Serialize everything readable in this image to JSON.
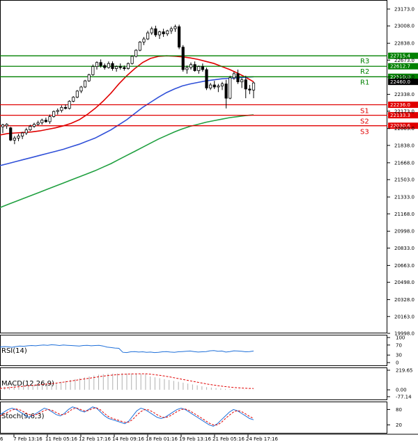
{
  "chart_data": {
    "type": "candlestick",
    "price_axis": {
      "ticks": [
        "23173.0",
        "23008.0",
        "22838.0",
        "22673.0",
        "22508.0",
        "22338.0",
        "22173.0",
        "22003.0",
        "21838.0",
        "21668.0",
        "21503.0",
        "21333.0",
        "21168.0",
        "20998.0",
        "20833.0",
        "20663.0",
        "20498.0",
        "20328.0",
        "20163.0",
        "19998.0"
      ],
      "range": [
        19998,
        23173
      ]
    },
    "time_axis": {
      "ticks": [
        "7 Feb 13:16",
        "11 Feb 05:16",
        "12 Feb 17:16",
        "14 Feb 09:16",
        "18 Feb 01:16",
        "19 Feb 13:16",
        "21 Feb 05:16",
        "24 Feb 17:16"
      ],
      "leading_tick_fragment": "6"
    },
    "levels": [
      {
        "name": "R3",
        "value": 22715.4,
        "label": "22715.4",
        "color": "#008000"
      },
      {
        "name": "R2",
        "value": 22612.7,
        "label": "22612.7",
        "color": "#008000"
      },
      {
        "name": "R1",
        "value": 22510.0,
        "label": "22510.0",
        "color": "#008000"
      },
      {
        "name": "S1",
        "value": 22236.0,
        "label": "22236.0",
        "color": "#e00000"
      },
      {
        "name": "S2",
        "value": 22133.3,
        "label": "22133.3",
        "color": "#e00000"
      },
      {
        "name": "S3",
        "value": 22030.6,
        "label": "22030.6",
        "color": "#e00000"
      }
    ],
    "current_price": {
      "value": 22460.0,
      "label": "22460.0"
    },
    "candles": [
      [
        22020,
        22050,
        21960,
        22040
      ],
      [
        22030,
        22055,
        22000,
        22045
      ],
      [
        22010,
        22020,
        21880,
        21890
      ],
      [
        21890,
        21930,
        21850,
        21910
      ],
      [
        21910,
        21950,
        21880,
        21930
      ],
      [
        21930,
        21970,
        21900,
        21960
      ],
      [
        21960,
        22010,
        21940,
        21990
      ],
      [
        21990,
        22040,
        21980,
        22025
      ],
      [
        22025,
        22060,
        22010,
        22045
      ],
      [
        22045,
        22080,
        22030,
        22060
      ],
      [
        22060,
        22100,
        22040,
        22085
      ],
      [
        22085,
        22110,
        22060,
        22070
      ],
      [
        22070,
        22140,
        22050,
        22120
      ],
      [
        22120,
        22180,
        22110,
        22170
      ],
      [
        22170,
        22200,
        22140,
        22180
      ],
      [
        22180,
        22230,
        22160,
        22210
      ],
      [
        22210,
        22240,
        22190,
        22200
      ],
      [
        22200,
        22280,
        22190,
        22270
      ],
      [
        22270,
        22320,
        22260,
        22310
      ],
      [
        22310,
        22380,
        22300,
        22370
      ],
      [
        22370,
        22420,
        22350,
        22410
      ],
      [
        22410,
        22480,
        22400,
        22470
      ],
      [
        22470,
        22540,
        22460,
        22530
      ],
      [
        22530,
        22630,
        22520,
        22610
      ],
      [
        22610,
        22660,
        22580,
        22650
      ],
      [
        22650,
        22680,
        22600,
        22620
      ],
      [
        22620,
        22640,
        22580,
        22600
      ],
      [
        22600,
        22660,
        22590,
        22640
      ],
      [
        22640,
        22660,
        22570,
        22590
      ],
      [
        22590,
        22620,
        22560,
        22610
      ],
      [
        22610,
        22640,
        22580,
        22600
      ],
      [
        22600,
        22620,
        22570,
        22590
      ],
      [
        22590,
        22650,
        22580,
        22640
      ],
      [
        22640,
        22720,
        22630,
        22710
      ],
      [
        22710,
        22780,
        22700,
        22770
      ],
      [
        22770,
        22860,
        22760,
        22850
      ],
      [
        22850,
        22900,
        22820,
        22880
      ],
      [
        22880,
        22960,
        22870,
        22940
      ],
      [
        22940,
        23000,
        22920,
        22980
      ],
      [
        22980,
        23010,
        22900,
        22920
      ],
      [
        22920,
        22960,
        22880,
        22950
      ],
      [
        22950,
        22980,
        22900,
        22930
      ],
      [
        22930,
        22970,
        22910,
        22960
      ],
      [
        22960,
        23000,
        22930,
        22980
      ],
      [
        22980,
        23020,
        22950,
        23000
      ],
      [
        23000,
        23020,
        22780,
        22800
      ],
      [
        22800,
        22820,
        22560,
        22580
      ],
      [
        22580,
        22620,
        22540,
        22600
      ],
      [
        22600,
        22650,
        22580,
        22630
      ],
      [
        22630,
        22660,
        22560,
        22570
      ],
      [
        22570,
        22620,
        22540,
        22610
      ],
      [
        22610,
        22640,
        22560,
        22580
      ],
      [
        22580,
        22600,
        22380,
        22400
      ],
      [
        22400,
        22450,
        22380,
        22430
      ],
      [
        22430,
        22470,
        22390,
        22410
      ],
      [
        22410,
        22440,
        22360,
        22420
      ],
      [
        22420,
        22460,
        22380,
        22440
      ],
      [
        22440,
        22480,
        22200,
        22300
      ],
      [
        22300,
        22520,
        22290,
        22500
      ],
      [
        22500,
        22560,
        22480,
        22540
      ],
      [
        22540,
        22580,
        22440,
        22460
      ],
      [
        22460,
        22500,
        22400,
        22480
      ],
      [
        22480,
        22520,
        22300,
        22390
      ],
      [
        22390,
        22430,
        22340,
        22380
      ],
      [
        22380,
        22460,
        22300,
        22450
      ]
    ],
    "ma_series": [
      {
        "color": "#e00000",
        "values": [
          21940,
          21955,
          21960,
          21965,
          21970,
          21980,
          21995,
          22010,
          22030,
          22055,
          22090,
          22140,
          22200,
          22270,
          22350,
          22440,
          22520,
          22590,
          22650,
          22690,
          22710,
          22715,
          22712,
          22705,
          22695,
          22680,
          22660,
          22640,
          22610,
          22580,
          22545,
          22505,
          22460
        ]
      },
      {
        "color": "#3050d8",
        "values": [
          21640,
          21660,
          21680,
          21700,
          21720,
          21740,
          21760,
          21780,
          21800,
          21825,
          21850,
          21880,
          21910,
          21950,
          21990,
          22040,
          22090,
          22150,
          22210,
          22260,
          22310,
          22355,
          22390,
          22420,
          22440,
          22455,
          22470,
          22480,
          22490,
          22495,
          22500,
          22505,
          22510
        ]
      },
      {
        "color": "#20a040",
        "values": [
          21230,
          21260,
          21290,
          21320,
          21350,
          21380,
          21410,
          21440,
          21470,
          21500,
          21530,
          21560,
          21590,
          21625,
          21660,
          21700,
          21740,
          21780,
          21820,
          21860,
          21900,
          21935,
          21970,
          22000,
          22025,
          22045,
          22065,
          22080,
          22095,
          22110,
          22120,
          22130,
          22137
        ]
      }
    ],
    "indicators": [
      {
        "name": "RSI(14)",
        "label": "RSI(14)",
        "ticks": [
          "100",
          "70",
          "30",
          "0"
        ],
        "range": [
          0,
          100
        ],
        "color": "#1e6fd9",
        "values": [
          62,
          64,
          63,
          61,
          64,
          66,
          65,
          67,
          68,
          67,
          69,
          70,
          69,
          71,
          70,
          68,
          70,
          69,
          68,
          67,
          66,
          68,
          69,
          67,
          68,
          69,
          66,
          62,
          60,
          58,
          57,
          41,
          40,
          43,
          44,
          42,
          43,
          41,
          42,
          40,
          41,
          43,
          44,
          42,
          41,
          43,
          44,
          45,
          46,
          44,
          42,
          43,
          44,
          47,
          48,
          45,
          46,
          42,
          44,
          47,
          46,
          45,
          43,
          44,
          46
        ]
      },
      {
        "name": "MACD(12,26,9)",
        "label": "MACD(12,26,9)",
        "ticks": [
          "219.65",
          "0.00",
          "-77.14"
        ],
        "range": [
          -77.14,
          219.65
        ],
        "hist_color": "#b0b0b0",
        "signal_color": "#e00000",
        "hist": [
          20,
          30,
          35,
          40,
          45,
          50,
          52,
          55,
          60,
          65,
          70,
          75,
          80,
          90,
          100,
          110,
          120,
          130,
          140,
          150,
          160,
          170,
          175,
          180,
          182,
          183,
          184,
          183,
          182,
          180,
          178,
          176,
          150,
          140,
          130,
          120,
          110,
          100,
          90,
          80,
          70,
          60,
          50,
          40,
          30,
          25,
          20,
          15,
          10,
          8,
          6,
          4,
          3,
          2,
          2
        ],
        "signal": [
          15,
          20,
          25,
          30,
          35,
          40,
          45,
          50,
          55,
          60,
          65,
          70,
          75,
          82,
          90,
          98,
          106,
          114,
          122,
          130,
          138,
          146,
          154,
          160,
          166,
          170,
          174,
          176,
          178,
          179,
          180,
          180,
          176,
          170,
          163,
          155,
          146,
          136,
          126,
          116,
          106,
          96,
          86,
          76,
          66,
          57,
          49,
          42,
          36,
          30,
          25,
          21,
          18,
          16,
          15
        ]
      },
      {
        "name": "Stoch(9,6,3)",
        "label": "Stoch(9,6,3)",
        "ticks": [
          "80",
          "20"
        ],
        "range": [
          0,
          100
        ],
        "k_color": "#1e6fd9",
        "d_color": "#e00000",
        "k": [
          60,
          70,
          80,
          85,
          80,
          70,
          60,
          50,
          55,
          65,
          75,
          85,
          80,
          70,
          60,
          55,
          65,
          80,
          90,
          85,
          75,
          70,
          80,
          90,
          85,
          70,
          55,
          45,
          40,
          35,
          30,
          25,
          35,
          55,
          75,
          85,
          80,
          70,
          60,
          50,
          45,
          50,
          60,
          70,
          80,
          85,
          80,
          70,
          60,
          50,
          40,
          30,
          20,
          15,
          25,
          40,
          55,
          70,
          80,
          75,
          65,
          55,
          45,
          40
        ],
        "d": [
          55,
          62,
          70,
          78,
          82,
          78,
          70,
          62,
          57,
          60,
          67,
          76,
          80,
          76,
          68,
          60,
          60,
          70,
          82,
          86,
          80,
          74,
          76,
          84,
          86,
          78,
          64,
          52,
          45,
          40,
          35,
          30,
          31,
          42,
          58,
          72,
          80,
          78,
          70,
          60,
          52,
          48,
          53,
          62,
          72,
          80,
          82,
          76,
          67,
          57,
          47,
          37,
          27,
          20,
          20,
          30,
          45,
          58,
          70,
          76,
          72,
          63,
          53,
          45
        ]
      }
    ]
  }
}
